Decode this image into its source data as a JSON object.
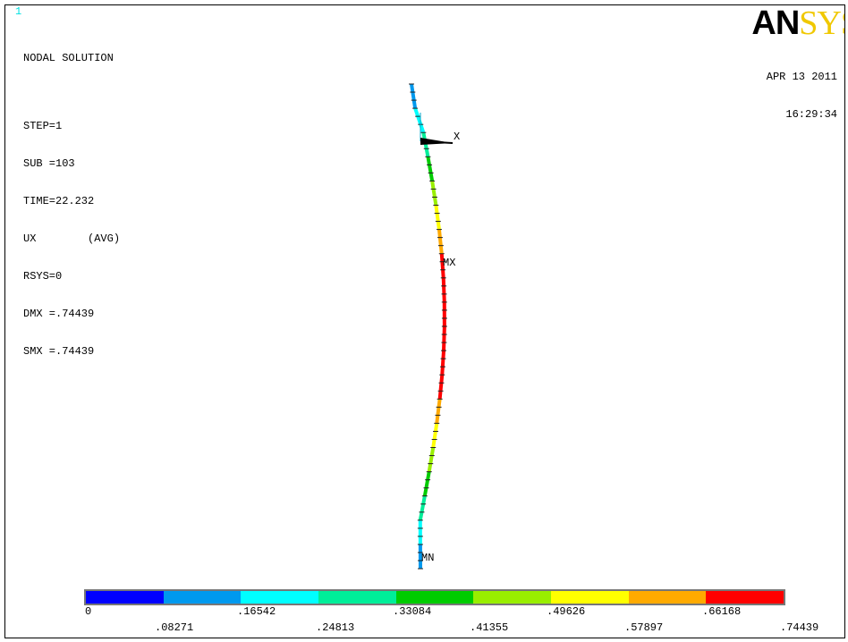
{
  "window_number": "1",
  "title": "NODAL SOLUTION",
  "info_lines": [
    "STEP=1",
    "SUB =103",
    "TIME=22.232",
    "UX        (AVG)",
    "RSYS=0",
    "DMX =.74439",
    "SMX =.74439"
  ],
  "logo": {
    "main": "AN",
    "accent": "SYS"
  },
  "date": "APR 13 2011",
  "time": "16:29:34",
  "labels": {
    "axis_x": "X",
    "max": "MX",
    "min": "MN"
  },
  "colors": {
    "text": "#000000",
    "triad": "#00aacc",
    "legend": [
      "#0000ff",
      "#0099ee",
      "#00ffff",
      "#00ee99",
      "#00cc00",
      "#99ee00",
      "#ffff00",
      "#ffaa00",
      "#ff0000"
    ]
  },
  "legend": {
    "top_values": [
      "0",
      ".16542",
      ".33084",
      ".49626",
      ".66168"
    ],
    "bottom_values": [
      ".08271",
      ".24813",
      ".41355",
      ".57897",
      ".74439"
    ]
  },
  "model": {
    "description_values": "UX displacement along column; 0 at ends, max .74439 mid-span",
    "nodes_ux_band": [
      0,
      1,
      2,
      3,
      4,
      5,
      6,
      7,
      8,
      8,
      8,
      8,
      8,
      7,
      6,
      5,
      4,
      3,
      2,
      1,
      0
    ]
  }
}
